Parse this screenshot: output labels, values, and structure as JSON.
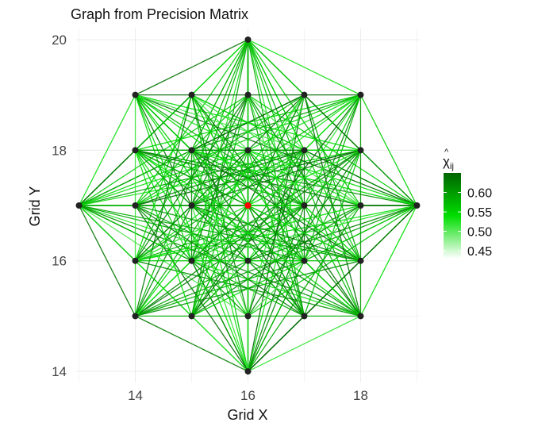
{
  "chart_data": {
    "type": "scatter",
    "title": "Graph from Precision Matrix",
    "xlabel": "Grid X",
    "ylabel": "Grid Y",
    "xlim": [
      12.95,
      19.05
    ],
    "ylim": [
      13.8,
      20.2
    ],
    "x_ticks": [
      14,
      16,
      18
    ],
    "y_ticks": [
      14,
      16,
      18,
      20
    ],
    "x_tick_labels": [
      "14",
      "16",
      "18"
    ],
    "y_tick_labels": [
      "14",
      "16",
      "18",
      "20"
    ],
    "grid": true,
    "nodes": [
      {
        "x": 16,
        "y": 20
      },
      {
        "x": 14,
        "y": 19
      },
      {
        "x": 15,
        "y": 19
      },
      {
        "x": 16,
        "y": 19
      },
      {
        "x": 17,
        "y": 19
      },
      {
        "x": 18,
        "y": 19
      },
      {
        "x": 14,
        "y": 18
      },
      {
        "x": 15,
        "y": 18
      },
      {
        "x": 16,
        "y": 18
      },
      {
        "x": 17,
        "y": 18
      },
      {
        "x": 18,
        "y": 18
      },
      {
        "x": 13,
        "y": 17
      },
      {
        "x": 14,
        "y": 17
      },
      {
        "x": 15,
        "y": 17
      },
      {
        "x": 16,
        "y": 17
      },
      {
        "x": 17,
        "y": 17
      },
      {
        "x": 18,
        "y": 17
      },
      {
        "x": 19,
        "y": 17
      },
      {
        "x": 14,
        "y": 16
      },
      {
        "x": 15,
        "y": 16
      },
      {
        "x": 16,
        "y": 16
      },
      {
        "x": 17,
        "y": 16
      },
      {
        "x": 18,
        "y": 16
      },
      {
        "x": 14,
        "y": 15
      },
      {
        "x": 15,
        "y": 15
      },
      {
        "x": 16,
        "y": 15
      },
      {
        "x": 17,
        "y": 15
      },
      {
        "x": 18,
        "y": 15
      },
      {
        "x": 16,
        "y": 14
      }
    ],
    "highlight_node": {
      "x": 16,
      "y": 17
    },
    "node_color": "#222222",
    "highlight_color": "#ff0000",
    "edges": [
      [
        0,
        1
      ],
      [
        0,
        2
      ],
      [
        0,
        3
      ],
      [
        0,
        4
      ],
      [
        0,
        5
      ],
      [
        0,
        6
      ],
      [
        0,
        7
      ],
      [
        0,
        8
      ],
      [
        0,
        9
      ],
      [
        0,
        10
      ],
      [
        0,
        11
      ],
      [
        0,
        12
      ],
      [
        0,
        13
      ],
      [
        0,
        14
      ],
      [
        0,
        15
      ],
      [
        0,
        16
      ],
      [
        0,
        17
      ],
      [
        0,
        18
      ],
      [
        0,
        19
      ],
      [
        0,
        20
      ],
      [
        0,
        21
      ],
      [
        0,
        22
      ],
      [
        0,
        23
      ],
      [
        0,
        24
      ],
      [
        0,
        25
      ],
      [
        0,
        26
      ],
      [
        0,
        27
      ],
      [
        0,
        28
      ],
      [
        28,
        1
      ],
      [
        28,
        2
      ],
      [
        28,
        3
      ],
      [
        28,
        4
      ],
      [
        28,
        5
      ],
      [
        28,
        6
      ],
      [
        28,
        7
      ],
      [
        28,
        8
      ],
      [
        28,
        9
      ],
      [
        28,
        10
      ],
      [
        28,
        11
      ],
      [
        28,
        12
      ],
      [
        28,
        13
      ],
      [
        28,
        14
      ],
      [
        28,
        15
      ],
      [
        28,
        16
      ],
      [
        28,
        17
      ],
      [
        28,
        18
      ],
      [
        28,
        19
      ],
      [
        28,
        20
      ],
      [
        28,
        21
      ],
      [
        28,
        22
      ],
      [
        28,
        23
      ],
      [
        28,
        24
      ],
      [
        28,
        25
      ],
      [
        28,
        26
      ],
      [
        28,
        27
      ],
      [
        11,
        1
      ],
      [
        11,
        2
      ],
      [
        11,
        3
      ],
      [
        11,
        4
      ],
      [
        11,
        5
      ],
      [
        11,
        6
      ],
      [
        11,
        7
      ],
      [
        11,
        8
      ],
      [
        11,
        9
      ],
      [
        11,
        10
      ],
      [
        11,
        12
      ],
      [
        11,
        13
      ],
      [
        11,
        14
      ],
      [
        11,
        15
      ],
      [
        11,
        16
      ],
      [
        11,
        17
      ],
      [
        11,
        18
      ],
      [
        11,
        19
      ],
      [
        11,
        20
      ],
      [
        11,
        21
      ],
      [
        11,
        22
      ],
      [
        11,
        23
      ],
      [
        11,
        24
      ],
      [
        11,
        25
      ],
      [
        11,
        26
      ],
      [
        11,
        27
      ],
      [
        17,
        1
      ],
      [
        17,
        2
      ],
      [
        17,
        3
      ],
      [
        17,
        4
      ],
      [
        17,
        5
      ],
      [
        17,
        6
      ],
      [
        17,
        7
      ],
      [
        17,
        8
      ],
      [
        17,
        9
      ],
      [
        17,
        10
      ],
      [
        17,
        12
      ],
      [
        17,
        13
      ],
      [
        17,
        14
      ],
      [
        17,
        15
      ],
      [
        17,
        16
      ],
      [
        17,
        18
      ],
      [
        17,
        19
      ],
      [
        17,
        20
      ],
      [
        17,
        21
      ],
      [
        17,
        22
      ],
      [
        17,
        23
      ],
      [
        17,
        24
      ],
      [
        17,
        25
      ],
      [
        17,
        26
      ],
      [
        17,
        27
      ],
      [
        1,
        5
      ],
      [
        1,
        23
      ],
      [
        5,
        27
      ],
      [
        23,
        27
      ],
      [
        1,
        9
      ],
      [
        1,
        10
      ],
      [
        1,
        15
      ],
      [
        1,
        16
      ],
      [
        1,
        20
      ],
      [
        1,
        21
      ],
      [
        1,
        22
      ],
      [
        1,
        26
      ],
      [
        1,
        27
      ],
      [
        1,
        7
      ],
      [
        1,
        13
      ],
      [
        1,
        19
      ],
      [
        5,
        6
      ],
      [
        5,
        7
      ],
      [
        5,
        12
      ],
      [
        5,
        13
      ],
      [
        5,
        18
      ],
      [
        5,
        19
      ],
      [
        5,
        20
      ],
      [
        5,
        23
      ],
      [
        5,
        24
      ],
      [
        5,
        9
      ],
      [
        5,
        15
      ],
      [
        5,
        21
      ],
      [
        23,
        2
      ],
      [
        23,
        3
      ],
      [
        23,
        4
      ],
      [
        23,
        8
      ],
      [
        23,
        9
      ],
      [
        23,
        10
      ],
      [
        23,
        14
      ],
      [
        23,
        15
      ],
      [
        23,
        16
      ],
      [
        23,
        19
      ],
      [
        23,
        21
      ],
      [
        23,
        22
      ],
      [
        27,
        2
      ],
      [
        27,
        3
      ],
      [
        27,
        4
      ],
      [
        27,
        6
      ],
      [
        27,
        7
      ],
      [
        27,
        8
      ],
      [
        27,
        12
      ],
      [
        27,
        13
      ],
      [
        27,
        14
      ],
      [
        27,
        19
      ],
      [
        27,
        21
      ],
      [
        27,
        18
      ],
      [
        2,
        6
      ],
      [
        2,
        9
      ],
      [
        2,
        18
      ],
      [
        2,
        22
      ],
      [
        2,
        25
      ],
      [
        2,
        26
      ],
      [
        2,
        16
      ],
      [
        2,
        21
      ],
      [
        4,
        10
      ],
      [
        4,
        7
      ],
      [
        4,
        22
      ],
      [
        4,
        18
      ],
      [
        4,
        24
      ],
      [
        4,
        25
      ],
      [
        4,
        12
      ],
      [
        4,
        19
      ],
      [
        24,
        6
      ],
      [
        24,
        10
      ],
      [
        24,
        8
      ],
      [
        24,
        15
      ],
      [
        24,
        9
      ],
      [
        24,
        16
      ],
      [
        24,
        3
      ],
      [
        26,
        6
      ],
      [
        26,
        10
      ],
      [
        26,
        8
      ],
      [
        26,
        13
      ],
      [
        26,
        7
      ],
      [
        26,
        12
      ],
      [
        26,
        3
      ],
      [
        6,
        10
      ],
      [
        6,
        15
      ],
      [
        6,
        16
      ],
      [
        6,
        21
      ],
      [
        6,
        22
      ],
      [
        6,
        9
      ],
      [
        6,
        20
      ],
      [
        10,
        12
      ],
      [
        10,
        13
      ],
      [
        10,
        18
      ],
      [
        10,
        19
      ],
      [
        10,
        7
      ],
      [
        10,
        20
      ],
      [
        18,
        22
      ],
      [
        18,
        15
      ],
      [
        18,
        16
      ],
      [
        18,
        9
      ],
      [
        18,
        8
      ],
      [
        22,
        12
      ],
      [
        22,
        13
      ],
      [
        22,
        7
      ],
      [
        22,
        8
      ],
      [
        3,
        12
      ],
      [
        3,
        16
      ],
      [
        3,
        19
      ],
      [
        3,
        21
      ],
      [
        3,
        25
      ],
      [
        3,
        18
      ],
      [
        3,
        22
      ],
      [
        25,
        12
      ],
      [
        25,
        16
      ],
      [
        25,
        7
      ],
      [
        25,
        9
      ],
      [
        25,
        6
      ],
      [
        25,
        10
      ],
      [
        7,
        15
      ],
      [
        7,
        21
      ],
      [
        7,
        9
      ],
      [
        7,
        19
      ],
      [
        7,
        16
      ],
      [
        9,
        13
      ],
      [
        9,
        19
      ],
      [
        9,
        21
      ],
      [
        9,
        12
      ],
      [
        19,
        21
      ],
      [
        19,
        15
      ],
      [
        21,
        13
      ],
      [
        14,
        1
      ],
      [
        14,
        2
      ],
      [
        14,
        4
      ],
      [
        14,
        5
      ],
      [
        14,
        6
      ],
      [
        14,
        10
      ],
      [
        14,
        18
      ],
      [
        14,
        22
      ],
      [
        14,
        23
      ],
      [
        14,
        24
      ],
      [
        14,
        26
      ],
      [
        14,
        27
      ],
      [
        14,
        7
      ],
      [
        14,
        9
      ],
      [
        14,
        19
      ],
      [
        14,
        21
      ],
      [
        14,
        8
      ],
      [
        14,
        20
      ],
      [
        14,
        13
      ],
      [
        14,
        15
      ]
    ],
    "legend": {
      "title": "χ",
      "title_hat": "^",
      "title_subscript": "ij",
      "range": [
        0.43,
        0.65
      ],
      "ticks": [
        0.45,
        0.5,
        0.55,
        0.6
      ],
      "tick_labels": [
        "0.45",
        "0.50",
        "0.55",
        "0.60"
      ],
      "colors": [
        "#ffffff",
        "#00dd00",
        "#006400"
      ],
      "position": "right"
    }
  }
}
